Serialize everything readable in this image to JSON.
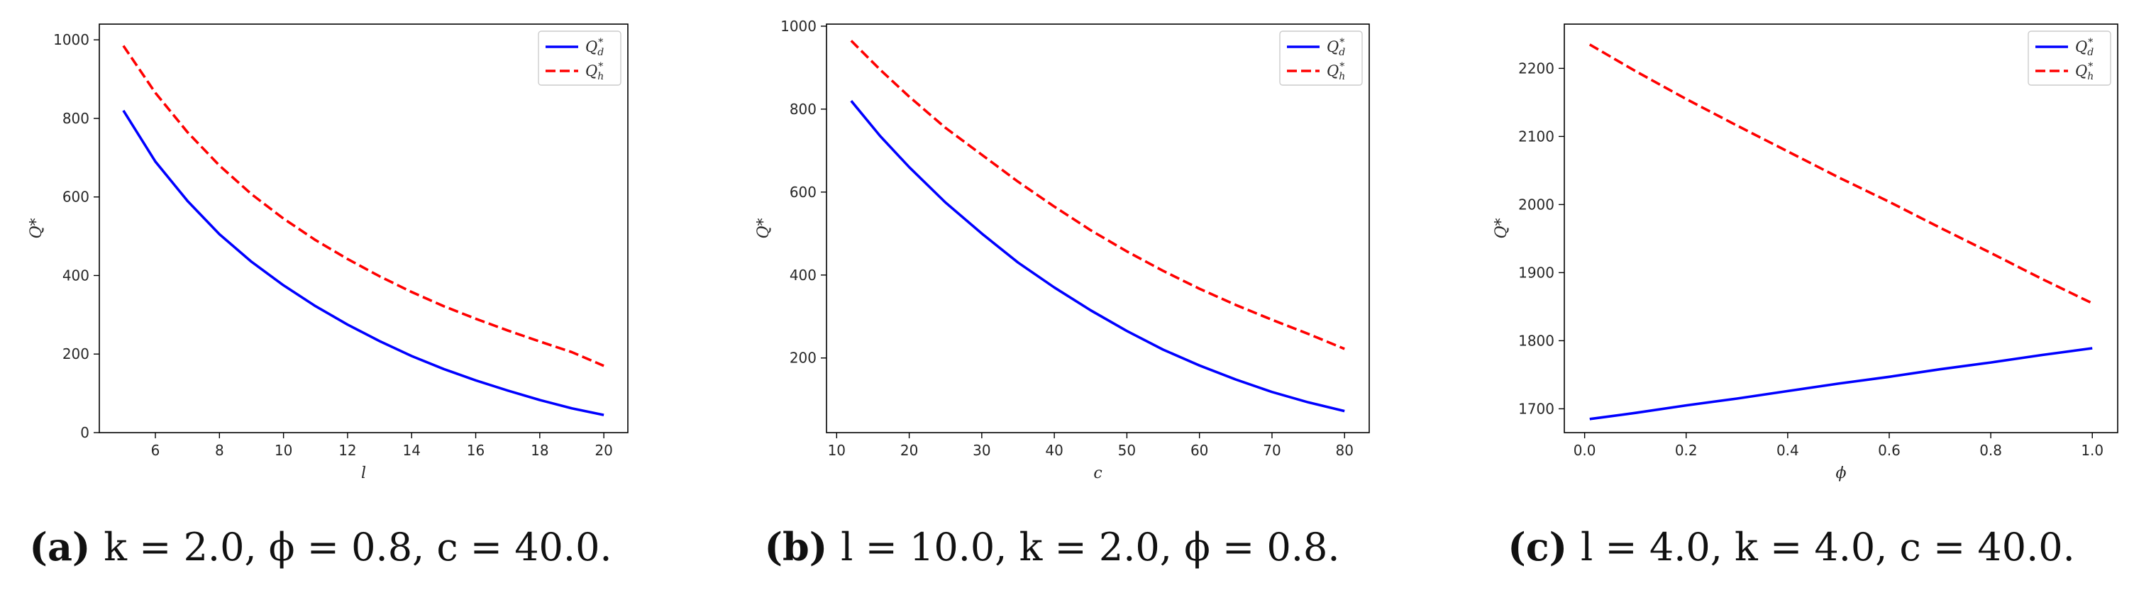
{
  "chart_data": [
    {
      "type": "line",
      "panel": "a",
      "ylabel": "Q*",
      "xlabel": "l",
      "xlim": [
        4.25,
        20.75
      ],
      "ylim": [
        0,
        1040
      ],
      "xticks": [
        6,
        8,
        10,
        12,
        14,
        16,
        18,
        20
      ],
      "xticklabels": [
        "6",
        "8",
        "10",
        "12",
        "14",
        "16",
        "18",
        "20"
      ],
      "yticks": [
        0,
        200,
        400,
        600,
        800,
        1000
      ],
      "yticklabels": [
        "0",
        "200",
        "400",
        "600",
        "800",
        "1000"
      ],
      "legend_position": "top-right",
      "x": [
        5,
        6,
        7,
        8,
        9,
        10,
        11,
        12,
        13,
        14,
        15,
        16,
        17,
        18,
        19,
        20
      ],
      "series": [
        {
          "name": "Q_d^*",
          "label_base": "Q",
          "label_sub": "d",
          "label_sup": "*",
          "color": "#0000ff",
          "dash": "solid",
          "values": [
            820,
            690,
            590,
            505,
            435,
            375,
            322,
            275,
            233,
            195,
            162,
            133,
            107,
            83,
            62,
            45
          ]
        },
        {
          "name": "Q_h^*",
          "label_base": "Q",
          "label_sub": "h",
          "label_sup": "*",
          "color": "#ff0000",
          "dash": "dashed",
          "values": [
            985,
            865,
            765,
            680,
            607,
            545,
            490,
            442,
            398,
            358,
            322,
            290,
            260,
            232,
            205,
            170
          ]
        }
      ],
      "caption_letter": "(a)",
      "caption_text": "k = 2.0, ϕ = 0.8, c = 40.0."
    },
    {
      "type": "line",
      "panel": "b",
      "ylabel": "Q*",
      "xlabel": "c",
      "xlim": [
        8.6,
        83.4
      ],
      "ylim": [
        20,
        1005
      ],
      "xticks": [
        10,
        20,
        30,
        40,
        50,
        60,
        70,
        80
      ],
      "xticklabels": [
        "10",
        "20",
        "30",
        "40",
        "50",
        "60",
        "70",
        "80"
      ],
      "yticks": [
        200,
        400,
        600,
        800,
        1000
      ],
      "yticklabels": [
        "200",
        "400",
        "600",
        "800",
        "1000"
      ],
      "legend_position": "top-right",
      "x": [
        12,
        16,
        20,
        25,
        30,
        35,
        40,
        45,
        50,
        55,
        60,
        65,
        70,
        75,
        80
      ],
      "series": [
        {
          "name": "Q_d^*",
          "label_base": "Q",
          "label_sub": "d",
          "label_sup": "*",
          "color": "#0000ff",
          "dash": "solid",
          "values": [
            820,
            735,
            660,
            575,
            500,
            430,
            370,
            315,
            265,
            220,
            182,
            148,
            118,
            93,
            72
          ]
        },
        {
          "name": "Q_h^*",
          "label_base": "Q",
          "label_sub": "h",
          "label_sup": "*",
          "color": "#ff0000",
          "dash": "dashed",
          "values": [
            965,
            895,
            830,
            755,
            690,
            625,
            565,
            508,
            457,
            410,
            367,
            328,
            292,
            258,
            222
          ]
        }
      ],
      "caption_letter": "(b)",
      "caption_text": "l = 10.0, k = 2.0, ϕ = 0.8."
    },
    {
      "type": "line",
      "panel": "c",
      "ylabel": "Q*",
      "xlabel": "ϕ",
      "xlim": [
        -0.04,
        1.05
      ],
      "ylim": [
        1665,
        2265
      ],
      "xticks": [
        0.0,
        0.2,
        0.4,
        0.6,
        0.8,
        1.0
      ],
      "xticklabels": [
        "0.0",
        "0.2",
        "0.4",
        "0.6",
        "0.8",
        "1.0"
      ],
      "yticks": [
        1700,
        1800,
        1900,
        2000,
        2100,
        2200
      ],
      "yticklabels": [
        "1700",
        "1800",
        "1900",
        "2000",
        "2100",
        "2200"
      ],
      "legend_position": "top-right",
      "x": [
        0.01,
        0.1,
        0.2,
        0.3,
        0.4,
        0.5,
        0.6,
        0.7,
        0.8,
        0.9,
        1.0
      ],
      "series": [
        {
          "name": "Q_d^*",
          "label_base": "Q",
          "label_sub": "d",
          "label_sup": "*",
          "color": "#0000ff",
          "dash": "solid",
          "values": [
            1685,
            1694,
            1705,
            1715,
            1726,
            1737,
            1747,
            1758,
            1768,
            1779,
            1789
          ]
        },
        {
          "name": "Q_h^*",
          "label_base": "Q",
          "label_sub": "h",
          "label_sup": "*",
          "color": "#ff0000",
          "dash": "dashed",
          "values": [
            2235,
            2196,
            2155,
            2116,
            2078,
            2040,
            2004,
            1966,
            1929,
            1891,
            1855
          ]
        }
      ],
      "caption_letter": "(c)",
      "caption_text": "l = 4.0, k = 4.0, c = 40.0."
    }
  ]
}
